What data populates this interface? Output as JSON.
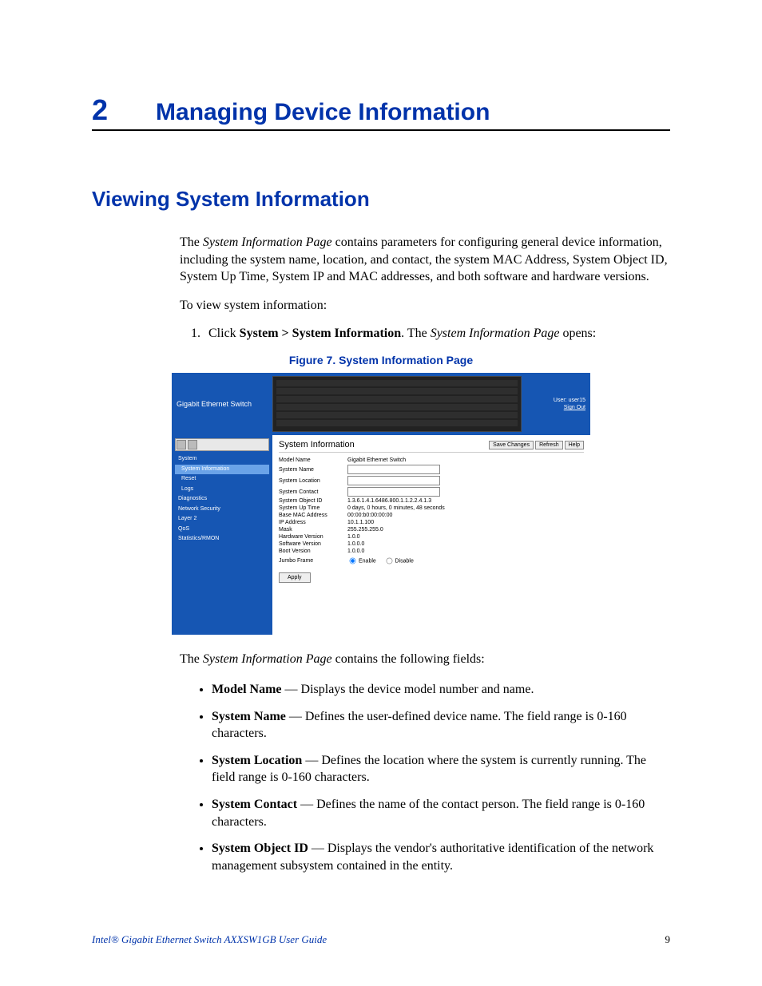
{
  "chapter": {
    "number": "2",
    "title": "Managing Device Information"
  },
  "section": {
    "title": "Viewing System Information"
  },
  "intro_parts": {
    "p1_a": "The ",
    "p1_i": "System Information Page",
    "p1_b": " contains parameters for configuring general device information, including the system name, location, and contact, the system MAC Address, System Object ID, System Up Time, System IP and MAC addresses, and both software and hardware versions.",
    "p2": "To view system information:"
  },
  "step1": {
    "pre": "Click ",
    "bold": "System > System Information",
    "mid": ". The ",
    "ital": "System Information Page",
    "post": " opens:"
  },
  "figure_caption": "Figure 7. System Information Page",
  "after_fig": {
    "a": "The ",
    "i": "System Information Page",
    "b": " contains the following fields:"
  },
  "bullets": [
    {
      "term": "Model Name",
      "desc": " — Displays the device model number and name."
    },
    {
      "term": "System Name",
      "desc": " — Defines the user-defined device name. The field range is 0-160 characters."
    },
    {
      "term": "System Location",
      "desc": " — Defines the location where the system is currently running. The field range is 0-160 characters."
    },
    {
      "term": "System Contact",
      "desc": " — Defines the name of the contact person. The field range is 0-160 characters."
    },
    {
      "term": "System Object ID",
      "desc": " — Displays the vendor's authoritative identification of the network management subsystem contained in the entity."
    }
  ],
  "footer": {
    "title": "Intel® Gigabit Ethernet Switch AXXSW1GB User Guide",
    "page": "9"
  },
  "screenshot": {
    "device_label": "Gigabit Ethernet Switch",
    "user": "User: user15",
    "signout": "Sign Out",
    "nav": {
      "system": "System",
      "sysinfo": "System Information",
      "reset": "Reset",
      "logs": "Logs",
      "diag": "Diagnostics",
      "netsec": "Network Security",
      "layer2": "Layer 2",
      "qos": "QoS",
      "stats": "Statistics/RMON"
    },
    "panel_title": "System Information",
    "buttons": {
      "save": "Save Changes",
      "refresh": "Refresh",
      "help": "Help",
      "apply": "Apply"
    },
    "rows": {
      "model": {
        "label": "Model Name",
        "value": "Gigabit Ethernet Switch"
      },
      "sysname": {
        "label": "System Name"
      },
      "sysloc": {
        "label": "System Location"
      },
      "syscon": {
        "label": "System Contact"
      },
      "oid": {
        "label": "System Object ID",
        "value": "1.3.6.1.4.1.6486.800.1.1.2.2.4.1.3"
      },
      "uptime": {
        "label": "System Up Time",
        "value": "0 days, 0 hours, 0 minutes, 48 seconds"
      },
      "mac": {
        "label": "Base MAC Address",
        "value": "00:00:b0:00:00:00"
      },
      "ip": {
        "label": "IP Address",
        "value": "10.1.1.100"
      },
      "mask": {
        "label": "Mask",
        "value": "255.255.255.0"
      },
      "hw": {
        "label": "Hardware Version",
        "value": "1.0.0"
      },
      "sw": {
        "label": "Software Version",
        "value": "1.0.0.0"
      },
      "boot": {
        "label": "Boot Version",
        "value": "1.0.0.0"
      },
      "jumbo": {
        "label": "Jumbo Frame",
        "enable": "Enable",
        "disable": "Disable"
      }
    }
  }
}
